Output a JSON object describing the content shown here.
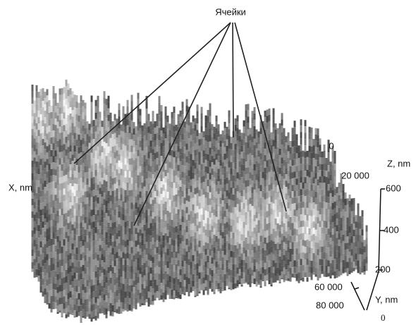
{
  "annotation": {
    "label": "Ячейки"
  },
  "x_axis": {
    "title": "X, nm",
    "ticks": [
      "0",
      "20 000"
    ]
  },
  "y_axis": {
    "title": "Y, nm",
    "ticks": [
      "60 000",
      "80 000"
    ]
  },
  "z_axis": {
    "title": "Z, nm",
    "ticks": [
      "600",
      "400",
      "200",
      "0"
    ]
  }
}
